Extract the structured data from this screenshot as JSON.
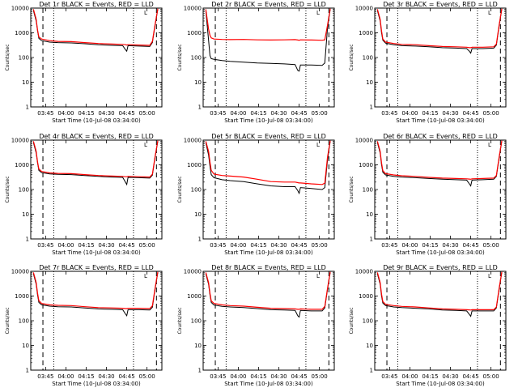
{
  "page": {
    "background": "#ffffff"
  },
  "style": {
    "events_color": "#000000",
    "lld_color": "#ff0000",
    "axis_color": "#000000"
  },
  "shared_axes": {
    "xlabel": "Start Time (10-Jul-08 03:34:00)",
    "ylabel": "Counts/sec",
    "y_scale": "log",
    "ylim": [
      1,
      10000
    ],
    "y_tick_labels": [
      "1",
      "10",
      "100",
      "1000",
      "10000"
    ],
    "x_tick_labels": [
      "03:45",
      "04:00",
      "04:15",
      "04:30",
      "04:45",
      "05:00"
    ],
    "x_tick_minutes": [
      11,
      26,
      41,
      56,
      71,
      86
    ],
    "xlim_minutes": [
      0,
      97
    ]
  },
  "chart_data": [
    {
      "type": "line",
      "title": "Det 1r BLACK = Events, RED = LLD",
      "x_minutes": [
        2,
        4,
        5,
        6,
        8,
        14,
        20,
        30,
        40,
        50,
        60,
        68,
        70,
        71,
        72,
        80,
        88,
        90,
        92,
        94
      ],
      "series": [
        {
          "name": "Events",
          "color": "#000000",
          "values": [
            8000,
            3000,
            1200,
            600,
            480,
            420,
            400,
            390,
            360,
            330,
            310,
            300,
            210,
            180,
            300,
            290,
            280,
            400,
            2000,
            9000
          ]
        },
        {
          "name": "LLD",
          "color": "#ff0000",
          "values": [
            9000,
            3500,
            1300,
            680,
            560,
            480,
            450,
            440,
            400,
            370,
            350,
            340,
            330,
            320,
            330,
            320,
            310,
            450,
            2200,
            9500
          ]
        }
      ],
      "annotations": {
        "dashed_minutes": [
          9,
          93
        ],
        "dotted_minutes": [
          17,
          76
        ],
        "bracket_label": "L"
      }
    },
    {
      "type": "line",
      "title": "Det 2r BLACK = Events, RED = LLD",
      "x_minutes": [
        2,
        4,
        5,
        6,
        8,
        14,
        20,
        30,
        40,
        50,
        60,
        68,
        70,
        71,
        72,
        80,
        88,
        90,
        92,
        94
      ],
      "series": [
        {
          "name": "Events",
          "color": "#000000",
          "values": [
            8000,
            500,
            120,
            90,
            85,
            75,
            70,
            65,
            60,
            58,
            55,
            52,
            30,
            28,
            50,
            50,
            48,
            60,
            1500,
            9000
          ]
        },
        {
          "name": "LLD",
          "color": "#ff0000",
          "values": [
            9000,
            1400,
            800,
            620,
            560,
            540,
            530,
            540,
            520,
            510,
            520,
            530,
            510,
            500,
            520,
            510,
            500,
            520,
            2000,
            9500
          ]
        }
      ],
      "annotations": {
        "dashed_minutes": [
          9,
          93
        ],
        "dotted_minutes": [
          17,
          76
        ],
        "bracket_label": "L"
      }
    },
    {
      "type": "line",
      "title": "Det 3r BLACK = Events, RED = LLD",
      "x_minutes": [
        2,
        4,
        5,
        6,
        8,
        14,
        20,
        30,
        40,
        50,
        60,
        68,
        70,
        71,
        72,
        80,
        88,
        90,
        92,
        94
      ],
      "series": [
        {
          "name": "Events",
          "color": "#000000",
          "values": [
            8000,
            3000,
            1000,
            500,
            380,
            330,
            300,
            290,
            270,
            250,
            240,
            230,
            180,
            150,
            230,
            230,
            240,
            320,
            1800,
            9000
          ]
        },
        {
          "name": "LLD",
          "color": "#ff0000",
          "values": [
            9000,
            3500,
            1200,
            560,
            420,
            370,
            340,
            330,
            300,
            280,
            270,
            260,
            250,
            250,
            260,
            260,
            270,
            350,
            2000,
            9500
          ]
        }
      ],
      "annotations": {
        "dashed_minutes": [
          9,
          93
        ],
        "dotted_minutes": [
          17,
          76
        ],
        "bracket_label": "L"
      }
    },
    {
      "type": "line",
      "title": "Det 4r BLACK = Events, RED = LLD",
      "x_minutes": [
        2,
        4,
        5,
        6,
        8,
        14,
        20,
        30,
        40,
        50,
        60,
        68,
        70,
        71,
        72,
        80,
        88,
        90,
        92,
        94
      ],
      "series": [
        {
          "name": "Events",
          "color": "#000000",
          "values": [
            8000,
            3000,
            1200,
            600,
            480,
            430,
            410,
            400,
            370,
            340,
            320,
            310,
            200,
            160,
            310,
            300,
            290,
            380,
            2000,
            9000
          ]
        },
        {
          "name": "LLD",
          "color": "#ff0000",
          "values": [
            9000,
            3500,
            1300,
            680,
            540,
            470,
            450,
            440,
            400,
            370,
            350,
            340,
            330,
            330,
            340,
            330,
            320,
            420,
            2200,
            9500
          ]
        }
      ],
      "annotations": {
        "dashed_minutes": [
          9,
          93
        ],
        "dotted_minutes": [
          17,
          76
        ],
        "bracket_label": "L"
      }
    },
    {
      "type": "line",
      "title": "Det 5r BLACK = Events, RED = LLD",
      "x_minutes": [
        2,
        4,
        5,
        6,
        8,
        14,
        20,
        30,
        40,
        50,
        60,
        68,
        70,
        71,
        72,
        80,
        88,
        90,
        92,
        94
      ],
      "series": [
        {
          "name": "Events",
          "color": "#000000",
          "values": [
            8000,
            2500,
            900,
            400,
            300,
            250,
            230,
            210,
            170,
            140,
            130,
            130,
            90,
            70,
            120,
            110,
            100,
            120,
            1500,
            9000
          ]
        },
        {
          "name": "LLD",
          "color": "#ff0000",
          "values": [
            9000,
            3500,
            1300,
            600,
            420,
            370,
            350,
            320,
            260,
            210,
            200,
            200,
            190,
            185,
            185,
            170,
            160,
            180,
            2000,
            9500
          ]
        }
      ],
      "annotations": {
        "dashed_minutes": [
          9,
          93
        ],
        "dotted_minutes": [
          17,
          76
        ],
        "bracket_label": "L"
      }
    },
    {
      "type": "line",
      "title": "Det 6r BLACK = Events, RED = LLD",
      "x_minutes": [
        2,
        4,
        5,
        6,
        8,
        14,
        20,
        30,
        40,
        50,
        60,
        68,
        70,
        71,
        72,
        80,
        88,
        90,
        92,
        94
      ],
      "series": [
        {
          "name": "Events",
          "color": "#000000",
          "values": [
            8000,
            3000,
            1000,
            500,
            390,
            340,
            320,
            300,
            280,
            260,
            250,
            240,
            170,
            140,
            240,
            250,
            260,
            340,
            1800,
            9000
          ]
        },
        {
          "name": "LLD",
          "color": "#ff0000",
          "values": [
            9000,
            3500,
            1200,
            580,
            440,
            390,
            360,
            340,
            310,
            290,
            280,
            270,
            265,
            260,
            270,
            280,
            290,
            370,
            2000,
            9500
          ]
        }
      ],
      "annotations": {
        "dashed_minutes": [
          9,
          93
        ],
        "dotted_minutes": [
          17,
          76
        ],
        "bracket_label": "L"
      }
    },
    {
      "type": "line",
      "title": "Det 7r BLACK = Events, RED = LLD",
      "x_minutes": [
        2,
        4,
        5,
        6,
        8,
        14,
        20,
        30,
        40,
        50,
        60,
        68,
        70,
        71,
        72,
        80,
        88,
        90,
        92,
        94
      ],
      "series": [
        {
          "name": "Events",
          "color": "#000000",
          "values": [
            8000,
            3000,
            1100,
            550,
            440,
            390,
            370,
            360,
            330,
            300,
            290,
            280,
            190,
            160,
            280,
            280,
            270,
            350,
            1900,
            9000
          ]
        },
        {
          "name": "LLD",
          "color": "#ff0000",
          "values": [
            9000,
            3500,
            1300,
            650,
            500,
            440,
            420,
            410,
            370,
            340,
            330,
            320,
            310,
            310,
            320,
            320,
            310,
            400,
            2100,
            9500
          ]
        }
      ],
      "annotations": {
        "dashed_minutes": [
          9,
          93
        ],
        "dotted_minutes": [
          17,
          76
        ],
        "bracket_label": "L"
      }
    },
    {
      "type": "line",
      "title": "Det 8r BLACK = Events, RED = LLD",
      "x_minutes": [
        2,
        4,
        5,
        6,
        8,
        14,
        20,
        30,
        40,
        50,
        60,
        68,
        70,
        71,
        72,
        80,
        88,
        90,
        92,
        94
      ],
      "series": [
        {
          "name": "Events",
          "color": "#000000",
          "values": [
            8000,
            3000,
            1100,
            550,
            430,
            380,
            360,
            340,
            310,
            280,
            270,
            260,
            160,
            140,
            260,
            250,
            250,
            330,
            1800,
            9000
          ]
        },
        {
          "name": "LLD",
          "color": "#ff0000",
          "values": [
            9000,
            3500,
            1300,
            640,
            500,
            440,
            410,
            390,
            350,
            320,
            310,
            300,
            290,
            290,
            300,
            290,
            290,
            380,
            2000,
            9500
          ]
        }
      ],
      "annotations": {
        "dashed_minutes": [
          9,
          93
        ],
        "dotted_minutes": [
          17,
          76
        ],
        "bracket_label": "L"
      }
    },
    {
      "type": "line",
      "title": "Det 9r BLACK = Events, RED = LLD",
      "x_minutes": [
        2,
        4,
        5,
        6,
        8,
        14,
        20,
        30,
        40,
        50,
        60,
        68,
        70,
        71,
        72,
        80,
        88,
        90,
        92,
        94
      ],
      "series": [
        {
          "name": "Events",
          "color": "#000000",
          "values": [
            8000,
            3000,
            1000,
            520,
            410,
            360,
            340,
            320,
            300,
            270,
            260,
            250,
            180,
            150,
            250,
            250,
            250,
            330,
            1800,
            9000
          ]
        },
        {
          "name": "LLD",
          "color": "#ff0000",
          "values": [
            9000,
            3500,
            1200,
            600,
            460,
            410,
            380,
            360,
            330,
            300,
            290,
            280,
            275,
            270,
            280,
            280,
            280,
            360,
            2000,
            9500
          ]
        }
      ],
      "annotations": {
        "dashed_minutes": [
          9,
          93
        ],
        "dotted_minutes": [
          17,
          76
        ],
        "bracket_label": "L"
      }
    }
  ]
}
